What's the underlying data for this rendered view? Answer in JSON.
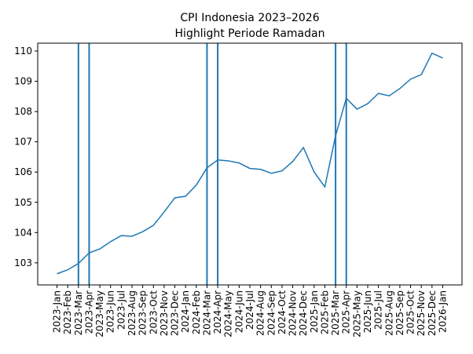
{
  "chart_data": {
    "type": "line",
    "title": "CPI Indonesia 2023–2026",
    "subtitle": "Highlight Periode Ramadan",
    "categories": [
      "2023-Jan",
      "2023-Feb",
      "2023-Mar",
      "2023-Apr",
      "2023-May",
      "2023-Jun",
      "2023-Jul",
      "2023-Aug",
      "2023-Sep",
      "2023-Oct",
      "2023-Nov",
      "2023-Dec",
      "2024-Jan",
      "2024-Feb",
      "2024-Mar",
      "2024-Apr",
      "2024-May",
      "2024-Jun",
      "2024-Jul",
      "2024-Aug",
      "2024-Sep",
      "2024-Oct",
      "2024-Nov",
      "2024-Dec",
      "2025-Jan",
      "2025-Feb",
      "2025-Mar",
      "2025-Apr",
      "2025-May",
      "2025-Jun",
      "2025-Jul",
      "2025-Aug",
      "2025-Sep",
      "2025-Oct",
      "2025-Nov",
      "2025-Dec",
      "2026-Jan"
    ],
    "values": [
      102.64,
      102.77,
      102.98,
      103.33,
      103.46,
      103.7,
      103.9,
      103.88,
      104.03,
      104.24,
      104.68,
      105.15,
      105.2,
      105.57,
      106.14,
      106.4,
      106.37,
      106.3,
      106.12,
      106.09,
      105.96,
      106.04,
      106.35,
      106.81,
      106.0,
      105.51,
      107.2,
      108.44,
      108.08,
      108.26,
      108.6,
      108.52,
      108.76,
      109.07,
      109.22,
      109.93,
      109.77
    ],
    "color": "#1f77b4",
    "highlight": [
      "2023-Mar",
      "2023-Apr",
      "2024-Mar",
      "2024-Apr",
      "2025-Mar",
      "2025-Apr"
    ],
    "ylim": [
      102.27,
      110.26
    ],
    "yticks": [
      103,
      104,
      105,
      106,
      107,
      108,
      109,
      110
    ],
    "grid": false
  }
}
